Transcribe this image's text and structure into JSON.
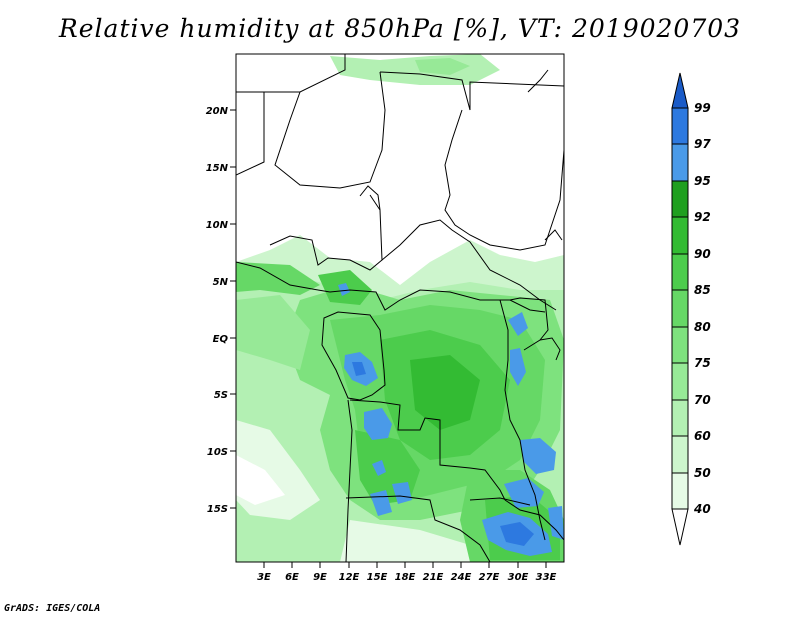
{
  "title": "Relative humidity at 850hPa [%], VT: 2019020703",
  "footer": "GrADS: IGES/COLA",
  "map": {
    "lat_labels": [
      "20N",
      "15N",
      "10N",
      "5N",
      "EQ",
      "5S",
      "10S",
      "15S"
    ],
    "lon_labels": [
      "3E",
      "6E",
      "9E",
      "12E",
      "15E",
      "18E",
      "21E",
      "24E",
      "27E",
      "30E",
      "33E"
    ]
  },
  "colorbar": {
    "levels": [
      "99",
      "97",
      "95",
      "92",
      "90",
      "85",
      "80",
      "75",
      "70",
      "60",
      "50",
      "40"
    ],
    "colors": {
      "below_40": "#ffffff",
      "40_50": "#e6fae6",
      "50_60": "#cdf5cd",
      "60_70": "#b3f0b3",
      "70_75": "#97e997",
      "75_80": "#7ee27e",
      "80_85": "#66d866",
      "85_90": "#4ccc4c",
      "90_92": "#33bb33",
      "92_95": "#1f9f1f",
      "95_97": "#4a9ae8",
      "97_99": "#2d79e0",
      "above_99": "#1a5bc8"
    }
  }
}
